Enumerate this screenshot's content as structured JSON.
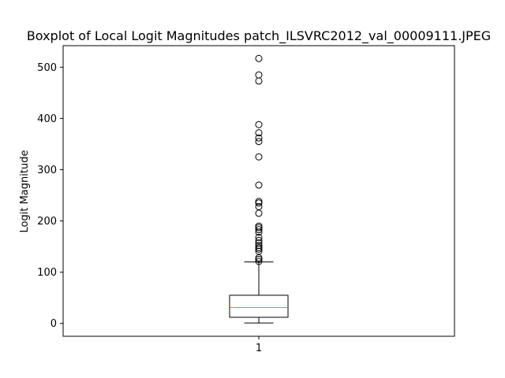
{
  "chart_data": {
    "type": "boxplot",
    "title": "Boxplot of Local Logit Magnitudes patch_ILSVRC2012_val_00009111.JPEG",
    "xlabel": "",
    "ylabel": "Logit Magnitude",
    "categories": [
      "1"
    ],
    "ylim": [
      -25,
      542
    ],
    "yticks": [
      0,
      100,
      200,
      300,
      400,
      500
    ],
    "grid": false,
    "box": {
      "whisker_low": 1,
      "q1": 12,
      "median": 31,
      "q3": 55,
      "whisker_high": 120
    },
    "outliers": [
      121,
      125,
      128,
      141,
      145,
      148,
      152,
      157,
      162,
      168,
      178,
      183,
      187,
      190,
      215,
      228,
      235,
      238,
      270,
      325,
      355,
      362,
      372,
      388,
      473,
      485,
      517
    ],
    "colors": {
      "median": "#ff7f0e",
      "box": "#000000",
      "outlier": "#000000"
    }
  }
}
